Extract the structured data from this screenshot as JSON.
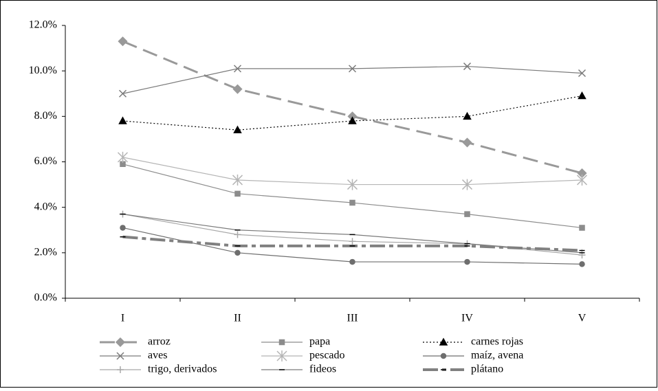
{
  "chart_data": {
    "type": "line",
    "categories": [
      "I",
      "II",
      "III",
      "IV",
      "V"
    ],
    "ylim": [
      0,
      12
    ],
    "yticks": [
      {
        "value": 0,
        "label": "0.0%"
      },
      {
        "value": 2,
        "label": "2.0%"
      },
      {
        "value": 4,
        "label": "4.0%"
      },
      {
        "value": 6,
        "label": "6.0%"
      },
      {
        "value": 8,
        "label": "8.0%"
      },
      {
        "value": 10,
        "label": "10.0%"
      },
      {
        "value": 12,
        "label": "12.0%"
      }
    ],
    "series": [
      {
        "name": "arroz",
        "color": "#999999",
        "marker": "diamond",
        "line": "longdash",
        "values": [
          11.3,
          9.2,
          8.0,
          6.85,
          5.5
        ]
      },
      {
        "name": "papa",
        "color": "#8c8c8c",
        "marker": "square",
        "line": "solid",
        "values": [
          5.9,
          4.6,
          4.2,
          3.7,
          3.1
        ]
      },
      {
        "name": "carnes rojas",
        "color": "#000000",
        "marker": "triangle",
        "line": "dotted",
        "values": [
          7.8,
          7.4,
          7.8,
          8.0,
          8.9
        ]
      },
      {
        "name": "aves",
        "color": "#7a7a7a",
        "marker": "x",
        "line": "solid",
        "values": [
          9.0,
          10.1,
          10.1,
          10.2,
          9.9
        ]
      },
      {
        "name": "pescado",
        "color": "#b5b5b5",
        "marker": "star",
        "line": "solid",
        "values": [
          6.2,
          5.2,
          5.0,
          5.0,
          5.2
        ]
      },
      {
        "name": "maíz, avena",
        "color": "#6e6e6e",
        "marker": "circle",
        "line": "solid",
        "values": [
          3.1,
          2.0,
          1.6,
          1.6,
          1.5
        ]
      },
      {
        "name": "trigo, derivados",
        "color": "#a8a8a8",
        "marker": "plus",
        "line": "solid",
        "values": [
          3.7,
          2.8,
          2.5,
          2.4,
          1.9
        ]
      },
      {
        "name": "fideos",
        "color": "#7a7a7a",
        "marker": "dash",
        "line": "solid",
        "values": [
          3.7,
          3.0,
          2.8,
          2.4,
          2.0
        ]
      },
      {
        "name": "plátano",
        "color": "#808080",
        "marker": "dash",
        "line": "dashdot",
        "values": [
          2.7,
          2.3,
          2.3,
          2.3,
          2.1
        ]
      }
    ]
  }
}
